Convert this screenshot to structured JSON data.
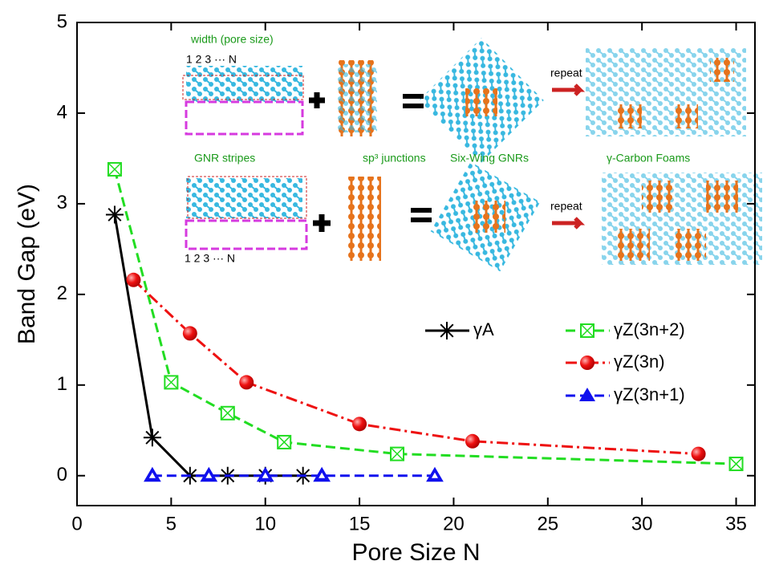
{
  "chart_data": {
    "type": "line",
    "xlabel": "Pore Size N",
    "ylabel": "Band Gap (eV)",
    "xlim": [
      0,
      36
    ],
    "ylim": [
      -0.33,
      5
    ],
    "xticks": [
      0,
      5,
      10,
      15,
      20,
      25,
      30,
      35
    ],
    "yticks": [
      0,
      1,
      2,
      3,
      4,
      5
    ],
    "series": [
      {
        "name": "γA",
        "color": "#000000",
        "marker": "star",
        "dash": "solid",
        "x": [
          2,
          4,
          6,
          8,
          10,
          12
        ],
        "values": [
          2.88,
          0.42,
          0,
          0,
          0,
          0
        ]
      },
      {
        "name": "γZ(3n+2)",
        "color": "#22dd22",
        "marker": "boxx",
        "dash": "dashed",
        "x": [
          2,
          5,
          8,
          11,
          17,
          35
        ],
        "values": [
          3.38,
          1.03,
          0.69,
          0.37,
          0.24,
          0.13
        ]
      },
      {
        "name": "γZ(3n)",
        "color": "#ee1111",
        "marker": "circle",
        "dash": "dashdot",
        "x": [
          3,
          6,
          9,
          15,
          21,
          33
        ],
        "values": [
          2.16,
          1.57,
          1.03,
          0.57,
          0.38,
          0.24
        ]
      },
      {
        "name": "γZ(3n+1)",
        "color": "#1111ee",
        "marker": "triangle",
        "dash": "dashed",
        "x": [
          4,
          7,
          10,
          13,
          19
        ],
        "values": [
          0,
          0,
          0,
          0,
          0
        ]
      }
    ],
    "annotations": [
      "width (pore size)",
      "1   2   3    ···      N",
      "GNR stripes",
      "sp³ junctions",
      "Six-Wing GNRs",
      "γ-Carbon Foams",
      "repeat",
      "repeat",
      "1 2 3       ···       N"
    ]
  }
}
